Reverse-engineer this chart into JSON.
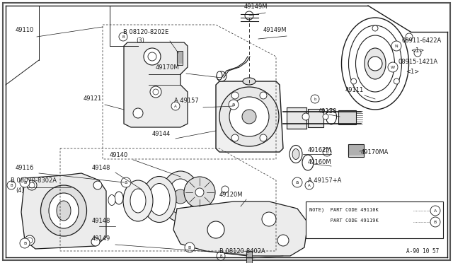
{
  "bg_color": "#ffffff",
  "line_color": "#1a1a1a",
  "border_color": "#333333",
  "timestamp": "A-90 10 57",
  "note_text1": "NOTE)  PART CODE 49110K",
  "note_text2": "       PART CODE 49119K",
  "figsize": [
    6.4,
    3.72
  ],
  "dpi": 100
}
